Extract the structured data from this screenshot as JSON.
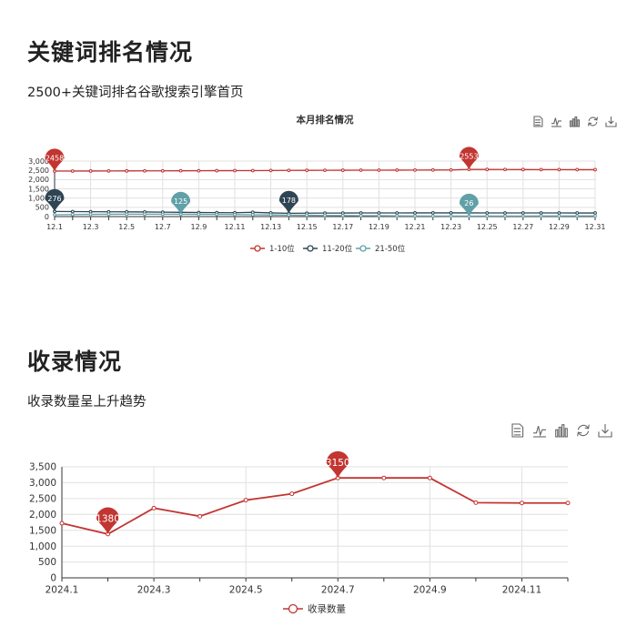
{
  "section1": {
    "heading": "关键词排名情况",
    "subtitle": "2500+关键词排名谷歌搜索引擎首页"
  },
  "section2": {
    "heading": "收录情况",
    "subtitle": "收录数量呈上升趋势"
  },
  "toolbox_icons": [
    "data-view-icon",
    "line-switch-icon",
    "bar-switch-icon",
    "restore-icon",
    "save-image-icon"
  ],
  "colors": {
    "red": "#c23531",
    "navy": "#2f4554",
    "teal": "#61a0a8"
  },
  "chart_data": [
    {
      "type": "line",
      "title": "本月排名情况",
      "x": [
        "12.1",
        "12.2",
        "12.3",
        "12.4",
        "12.5",
        "12.6",
        "12.7",
        "12.8",
        "12.9",
        "12.10",
        "12.11",
        "12.12",
        "12.13",
        "12.14",
        "12.15",
        "12.16",
        "12.17",
        "12.18",
        "12.19",
        "12.20",
        "12.21",
        "12.22",
        "12.23",
        "12.24",
        "12.25",
        "12.26",
        "12.27",
        "12.28",
        "12.29",
        "12.30",
        "12.31"
      ],
      "x_tick_labels": [
        "12.1",
        "12.3",
        "12.5",
        "12.7",
        "12.9",
        "12.11",
        "12.13",
        "12.15",
        "12.17",
        "12.19",
        "12.21",
        "12.23",
        "12.25",
        "12.27",
        "12.29",
        "12.31"
      ],
      "ylim": [
        0,
        3000
      ],
      "y_ticks": [
        0,
        500,
        1000,
        1500,
        2000,
        2500,
        3000
      ],
      "y_tick_labels": [
        "0",
        "500",
        "1,000",
        "1,500",
        "2,000",
        "2,500",
        "3,000"
      ],
      "legend_position": "bottom-center",
      "grid": true,
      "series": [
        {
          "name": "1-10位",
          "color": "#c23531",
          "values": [
            2458,
            2460,
            2462,
            2465,
            2468,
            2470,
            2472,
            2475,
            2478,
            2480,
            2482,
            2485,
            2490,
            2495,
            2500,
            2502,
            2505,
            2508,
            2510,
            2512,
            2515,
            2518,
            2520,
            2553,
            2548,
            2545,
            2542,
            2540,
            2538,
            2536,
            2535
          ],
          "markers": [
            {
              "index": 0,
              "label": "2458"
            },
            {
              "index": 23,
              "label": "2553"
            }
          ]
        },
        {
          "name": "11-20位",
          "color": "#2f4554",
          "values": [
            276,
            270,
            265,
            260,
            255,
            250,
            240,
            230,
            220,
            215,
            210,
            230,
            200,
            178,
            185,
            190,
            192,
            195,
            196,
            198,
            199,
            200,
            200,
            200,
            198,
            197,
            196,
            195,
            195,
            194,
            194
          ],
          "markers": [
            {
              "index": 0,
              "label": "276"
            },
            {
              "index": 13,
              "label": "178"
            }
          ]
        },
        {
          "name": "21-50位",
          "color": "#61a0a8",
          "values": [
            100,
            110,
            120,
            125,
            130,
            130,
            128,
            125,
            120,
            115,
            110,
            100,
            90,
            80,
            70,
            60,
            55,
            50,
            45,
            40,
            35,
            30,
            28,
            26,
            28,
            30,
            32,
            34,
            35,
            36,
            37
          ],
          "markers": [
            {
              "index": 7,
              "label": "125"
            },
            {
              "index": 23,
              "label": "26"
            }
          ]
        }
      ]
    },
    {
      "type": "line",
      "title": "",
      "x": [
        "2024.1",
        "2024.2",
        "2024.3",
        "2024.4",
        "2024.5",
        "2024.6",
        "2024.7",
        "2024.8",
        "2024.9",
        "2024.10",
        "2024.11",
        "2024.12"
      ],
      "x_tick_labels": [
        "2024.1",
        "",
        "2024.3",
        "",
        "2024.5",
        "",
        "2024.7",
        "",
        "2024.9",
        "",
        "2024.11",
        ""
      ],
      "ylim": [
        0,
        3500
      ],
      "y_ticks": [
        0,
        500,
        1000,
        1500,
        2000,
        2500,
        3000,
        3500
      ],
      "y_tick_labels": [
        "0",
        "500",
        "1,000",
        "1,500",
        "2,000",
        "2,500",
        "3,000",
        "3,500"
      ],
      "legend_position": "bottom-center",
      "grid": true,
      "series": [
        {
          "name": "收录数量",
          "color": "#c23531",
          "values": [
            1720,
            1380,
            2200,
            1940,
            2450,
            2650,
            3150,
            3150,
            3150,
            2370,
            2360,
            2360
          ],
          "markers": [
            {
              "index": 1,
              "label": "1380"
            },
            {
              "index": 6,
              "label": "3150"
            }
          ]
        }
      ]
    }
  ]
}
